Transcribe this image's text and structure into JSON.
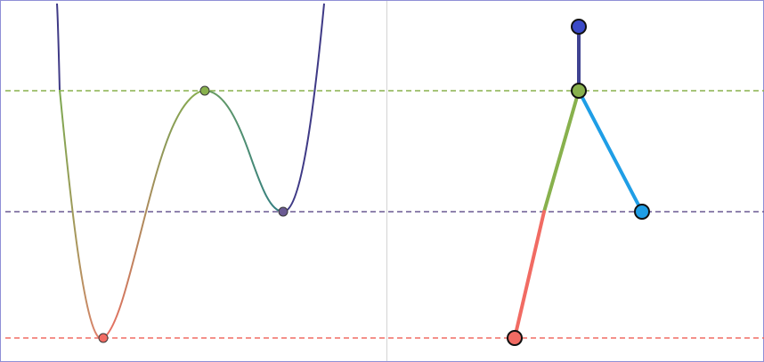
{
  "colors": {
    "background": "#ffffff",
    "frame": "#8f8fd6",
    "divider": "#d4d4d4",
    "curve_dark": "#3f3a86",
    "curve_mid": "#2f7c84",
    "green": "#88b14d",
    "purple": "#6a5a92",
    "red": "#f16b63",
    "blue": "#3b4ac8",
    "cyan": "#1f9ee6",
    "navy": "#3f4291"
  },
  "guide_lines": [
    {
      "name": "upper-reference",
      "color": "#88b14d"
    },
    {
      "name": "middle-reference",
      "color": "#6a5a92"
    },
    {
      "name": "lower-reference",
      "color": "#f16b63"
    }
  ],
  "energy_curve": {
    "critical_points": [
      {
        "name": "global-minimum",
        "color": "#f16b63"
      },
      {
        "name": "local-maximum",
        "color": "#88b14d"
      },
      {
        "name": "local-minimum",
        "color": "#6a5a92"
      }
    ]
  },
  "tree": {
    "nodes": [
      {
        "name": "top-node",
        "color": "#3b4ac8"
      },
      {
        "name": "branch-node",
        "color": "#88b14d"
      },
      {
        "name": "right-leaf-node",
        "color": "#1f9ee6"
      },
      {
        "name": "bottom-node",
        "color": "#f16b63"
      }
    ],
    "edges": [
      {
        "name": "top-edge",
        "color": "#3f4291"
      },
      {
        "name": "right-edge",
        "color": "#1f9ee6"
      },
      {
        "name": "green-edge",
        "color": "#88b14d"
      },
      {
        "name": "red-edge",
        "color": "#f16b63"
      }
    ]
  }
}
